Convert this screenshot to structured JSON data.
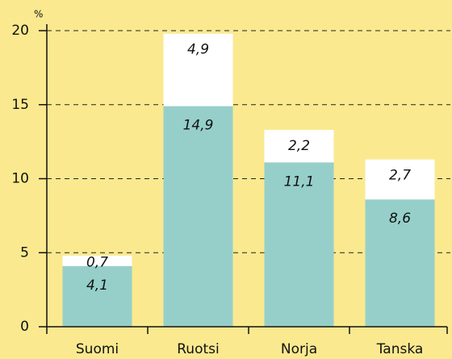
{
  "chart_data": {
    "type": "stacked_bar",
    "ylabel": "%",
    "categories": [
      "Suomi",
      "Ruotsi",
      "Norja",
      "Tanska"
    ],
    "series": [
      {
        "color": "#96cfca",
        "values": [
          4.1,
          14.9,
          11.1,
          8.6
        ],
        "value_labels": [
          "4,1",
          "14,9",
          "11,1",
          "8,6"
        ]
      },
      {
        "color": "#ffffff",
        "values": [
          0.7,
          4.9,
          2.2,
          2.7
        ],
        "value_labels": [
          "0,7",
          "4,9",
          "2,2",
          "2,7"
        ]
      }
    ],
    "ylim": [
      0,
      20
    ],
    "yticks": [
      0,
      5,
      10,
      15,
      20
    ],
    "grid": true
  }
}
